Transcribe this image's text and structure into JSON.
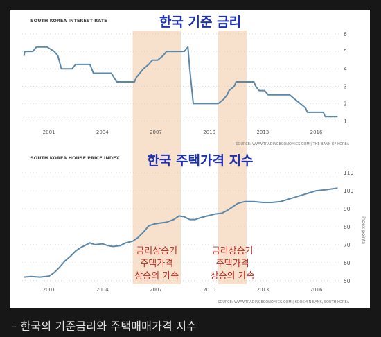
{
  "caption": "– 한국의 기준금리와 주택매매가격 지수",
  "colors": {
    "line": "#5b87a8",
    "shade": "#f6dcc4",
    "blue_text": "#1c31b5",
    "red_text": "#c0281e",
    "small_text": "#555555",
    "grid": "#bfbfbf"
  },
  "chart_data": [
    {
      "type": "line",
      "title": "SOUTH KOREA INTEREST RATE",
      "overlay_title": "한국 기준 금리",
      "source": "SOURCE: WWW.TRADINGECONOMICS.COM  |  THE BANK OF KOREA",
      "x_ticks": [
        "2001",
        "2004",
        "2007",
        "2010",
        "2013",
        "2016"
      ],
      "xlim": [
        1999.5,
        2017.3
      ],
      "y_ticks": [
        "1",
        "2",
        "3",
        "4",
        "5",
        "6"
      ],
      "ylim": [
        0.7,
        6.2
      ],
      "y_axis_side": "right",
      "grid": "horizontal dotted",
      "shaded_periods": [
        [
          2005.7,
          2008.4
        ],
        [
          2010.5,
          2012.1
        ]
      ],
      "series": [
        {
          "x": [
            1999.6,
            1999.65,
            2000.1,
            2000.3,
            2000.9,
            2001.3,
            2001.5,
            2001.7,
            2002.3,
            2002.5,
            2003.3,
            2003.5,
            2004.5,
            2004.8,
            2005.8,
            2005.9,
            2006.1,
            2006.3,
            2006.6,
            2006.8,
            2007.1,
            2007.4,
            2007.6,
            2008.6,
            2008.8,
            2008.9,
            2009.0,
            2009.1,
            2010.5,
            2010.8,
            2011.0,
            2011.1,
            2011.4,
            2011.5,
            2012.5,
            2012.6,
            2012.8,
            2013.1,
            2013.3,
            2014.5,
            2014.8,
            2015.1,
            2015.4,
            2015.5,
            2016.4,
            2016.5,
            2017.2
          ],
          "y": [
            4.75,
            5.0,
            5.0,
            5.25,
            5.25,
            5.0,
            4.75,
            4.0,
            4.0,
            4.25,
            4.25,
            3.75,
            3.75,
            3.25,
            3.25,
            3.5,
            3.75,
            4.0,
            4.25,
            4.5,
            4.5,
            4.75,
            5.0,
            5.0,
            5.25,
            4.0,
            3.0,
            2.0,
            2.0,
            2.25,
            2.5,
            2.75,
            3.0,
            3.25,
            3.25,
            3.0,
            2.75,
            2.75,
            2.5,
            2.5,
            2.25,
            2.0,
            1.75,
            1.5,
            1.5,
            1.25,
            1.25
          ]
        }
      ]
    },
    {
      "type": "line",
      "title": "SOUTH KOREA HOUSE PRICE INDEX",
      "overlay_title": "한국 주택가격 지수",
      "source": "SOURCE: WWW.TRADINGECONOMICS.COM  |  KOOKMIN BANK, SOUTH KOREA",
      "x_ticks": [
        "2001",
        "2004",
        "2007",
        "2010",
        "2013",
        "2016"
      ],
      "xlim": [
        1999.5,
        2017.3
      ],
      "y_ticks": [
        "50",
        "60",
        "70",
        "80",
        "90",
        "100",
        "110"
      ],
      "ylim": [
        48,
        112
      ],
      "y_axis_side": "right",
      "ylabel": "index points",
      "grid": "horizontal dotted",
      "shaded_periods": [
        [
          2005.7,
          2008.4
        ],
        [
          2010.5,
          2012.1
        ]
      ],
      "annotations": [
        {
          "lines": [
            "금리상승기",
            "주택가격",
            "상승의 가속"
          ],
          "x": 2007.05
        },
        {
          "lines": [
            "금리상승기",
            "주택가격",
            "상승의 가속"
          ],
          "x": 2011.3
        }
      ],
      "series": [
        {
          "x": [
            1999.6,
            2000.0,
            2000.5,
            2001.0,
            2001.3,
            2001.6,
            2001.9,
            2002.2,
            2002.5,
            2002.8,
            2003.0,
            2003.3,
            2003.6,
            2004.0,
            2004.3,
            2004.6,
            2005.0,
            2005.3,
            2005.7,
            2006.0,
            2006.3,
            2006.6,
            2006.9,
            2007.2,
            2007.6,
            2008.0,
            2008.3,
            2008.6,
            2008.9,
            2009.2,
            2009.5,
            2009.9,
            2010.3,
            2010.7,
            2011.0,
            2011.3,
            2011.6,
            2012.0,
            2012.5,
            2013.0,
            2013.5,
            2014.0,
            2014.5,
            2015.0,
            2015.5,
            2016.0,
            2016.5,
            2017.2
          ],
          "y": [
            52.0,
            52.3,
            52.0,
            52.5,
            54.5,
            57.5,
            61.0,
            63.5,
            66.5,
            68.5,
            69.5,
            71.0,
            70.0,
            70.5,
            69.5,
            69.0,
            69.5,
            71.0,
            72.0,
            74.0,
            77.0,
            80.5,
            81.5,
            82.0,
            82.5,
            84.0,
            86.0,
            85.5,
            84.0,
            84.0,
            85.0,
            86.0,
            87.0,
            87.5,
            89.0,
            91.0,
            93.0,
            94.0,
            94.0,
            93.5,
            93.5,
            94.0,
            95.5,
            97.0,
            98.5,
            100.0,
            100.5,
            101.5
          ]
        }
      ]
    }
  ]
}
